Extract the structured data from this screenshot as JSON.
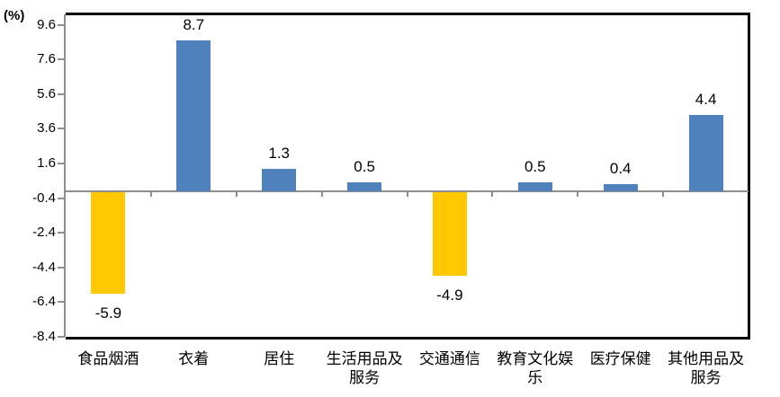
{
  "chart_data": {
    "type": "bar",
    "title": "",
    "unit_label": "(%)",
    "categories": [
      "食品烟酒",
      "衣着",
      "居住",
      "生活用品及\n服务",
      "交通通信",
      "教育文化娱\n乐",
      "医疗保健",
      "其他用品及\n服务"
    ],
    "values": [
      -5.9,
      8.7,
      1.3,
      0.5,
      -4.9,
      0.5,
      0.4,
      4.4
    ],
    "data_labels": [
      "-5.9",
      "8.7",
      "1.3",
      "0.5",
      "-4.9",
      "0.5",
      "0.4",
      "4.4"
    ],
    "ytick_labels": [
      "9.6",
      "7.6",
      "5.6",
      "3.6",
      "1.6",
      "-0.4",
      "-2.4",
      "-4.4",
      "-6.4",
      "-8.4"
    ],
    "ytick_values": [
      9.6,
      7.6,
      5.6,
      3.6,
      1.6,
      -0.4,
      -2.4,
      -4.4,
      -6.4,
      -8.4
    ],
    "ylim": [
      -8.4,
      10.2
    ],
    "grid": false,
    "legend": null,
    "colors": {
      "positive_bar": "#4F81BD",
      "negative_bar": "#FFC800",
      "axis_line": "#8E8E8E",
      "plot_border": "#000000",
      "text": "#000000"
    }
  }
}
